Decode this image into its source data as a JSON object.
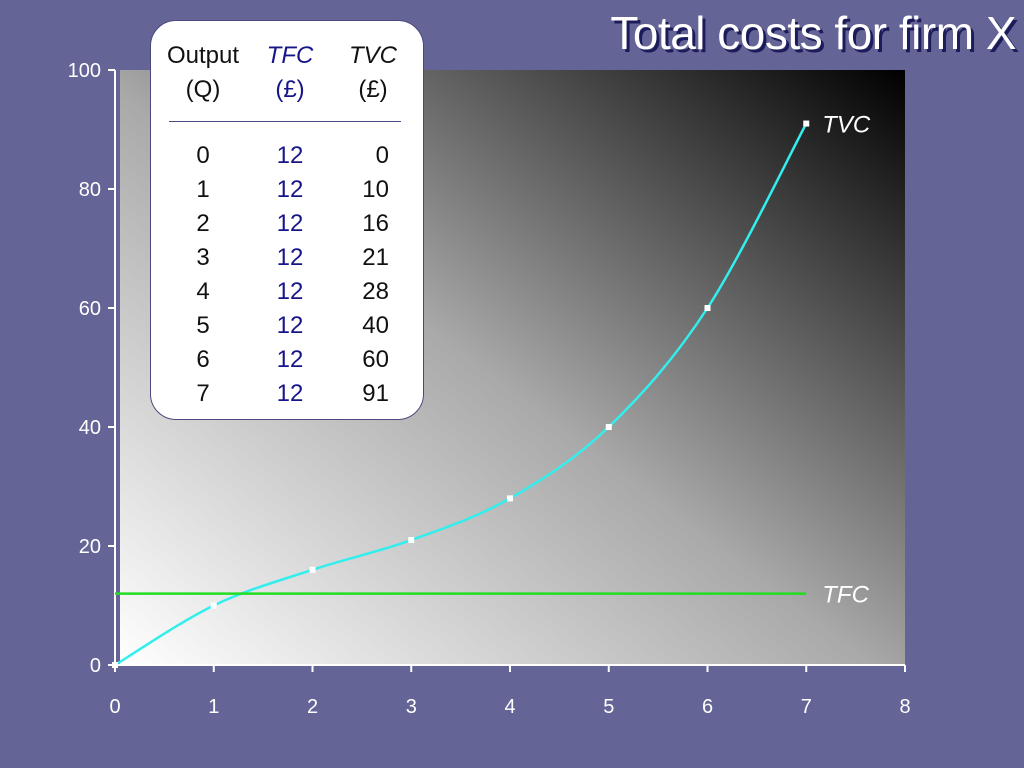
{
  "title": "Total costs for firm X",
  "table": {
    "headers": [
      {
        "name": "Output",
        "unit": "(Q)"
      },
      {
        "name": "TFC",
        "unit": "(£)"
      },
      {
        "name": "TVC",
        "unit": "(£)"
      }
    ],
    "rows": [
      [
        "0",
        "12",
        "0"
      ],
      [
        "1",
        "12",
        "10"
      ],
      [
        "2",
        "12",
        "16"
      ],
      [
        "3",
        "12",
        "21"
      ],
      [
        "4",
        "12",
        "28"
      ],
      [
        "5",
        "12",
        "40"
      ],
      [
        "6",
        "12",
        "60"
      ],
      [
        "7",
        "12",
        "91"
      ]
    ]
  },
  "chart_data": {
    "type": "line",
    "title": "Total costs for firm X",
    "xlabel": "",
    "ylabel": "",
    "xlim": [
      0,
      8
    ],
    "ylim": [
      0,
      100
    ],
    "x_ticks": [
      0,
      1,
      2,
      3,
      4,
      5,
      6,
      7,
      8
    ],
    "y_ticks": [
      0,
      20,
      40,
      60,
      80,
      100
    ],
    "grid": false,
    "series": [
      {
        "name": "TVC",
        "color": "#33eeee",
        "marker_color": "#ffffff",
        "x": [
          0,
          1,
          2,
          3,
          4,
          5,
          6,
          7
        ],
        "y": [
          0,
          10,
          16,
          21,
          28,
          40,
          60,
          91
        ]
      },
      {
        "name": "TFC",
        "color": "#22dd22",
        "x": [
          0,
          7
        ],
        "y": [
          12,
          12
        ]
      }
    ]
  },
  "colors": {
    "background": "#646497",
    "plot_gradient": [
      "#ffffff",
      "#aaaaaa",
      "#111111"
    ],
    "axis": "#ffffff",
    "tfc_text": "#16168a"
  }
}
